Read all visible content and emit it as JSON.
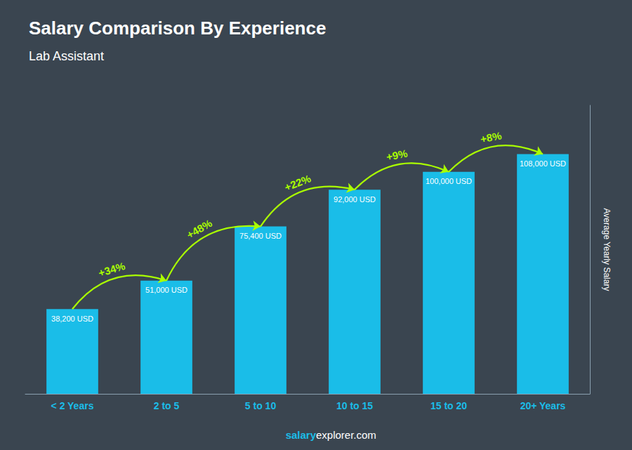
{
  "chart_data": {
    "type": "bar",
    "title": "Salary Comparison By Experience",
    "subtitle": "Lab Assistant",
    "ylabel": "Average Yearly Salary",
    "categories": [
      "< 2 Years",
      "2 to 5",
      "5 to 10",
      "10 to 15",
      "15 to 20",
      "20+ Years"
    ],
    "values": [
      38200,
      51000,
      75400,
      92000,
      100000,
      108000
    ],
    "value_labels": [
      "38,200 USD",
      "51,000 USD",
      "75,400 USD",
      "92,000 USD",
      "100,000 USD",
      "108,000 USD"
    ],
    "data_labels": true,
    "color": "#1ABDE8",
    "ylim": [
      0,
      130000
    ],
    "grid": false,
    "tick_labels": "x",
    "annotations": [
      {
        "text": "+34%",
        "from": "< 2 Years",
        "to": "2 to 5"
      },
      {
        "text": "+48%",
        "from": "2 to 5",
        "to": "5 to 10"
      },
      {
        "text": "+22%",
        "from": "5 to 10",
        "to": "10 to 15"
      },
      {
        "text": "+9%",
        "from": "10 to 15",
        "to": "15 to 20"
      },
      {
        "text": "+8%",
        "from": "15 to 20",
        "to": "20+ Years"
      }
    ],
    "footer": [
      "salary",
      "explorer.com"
    ]
  }
}
